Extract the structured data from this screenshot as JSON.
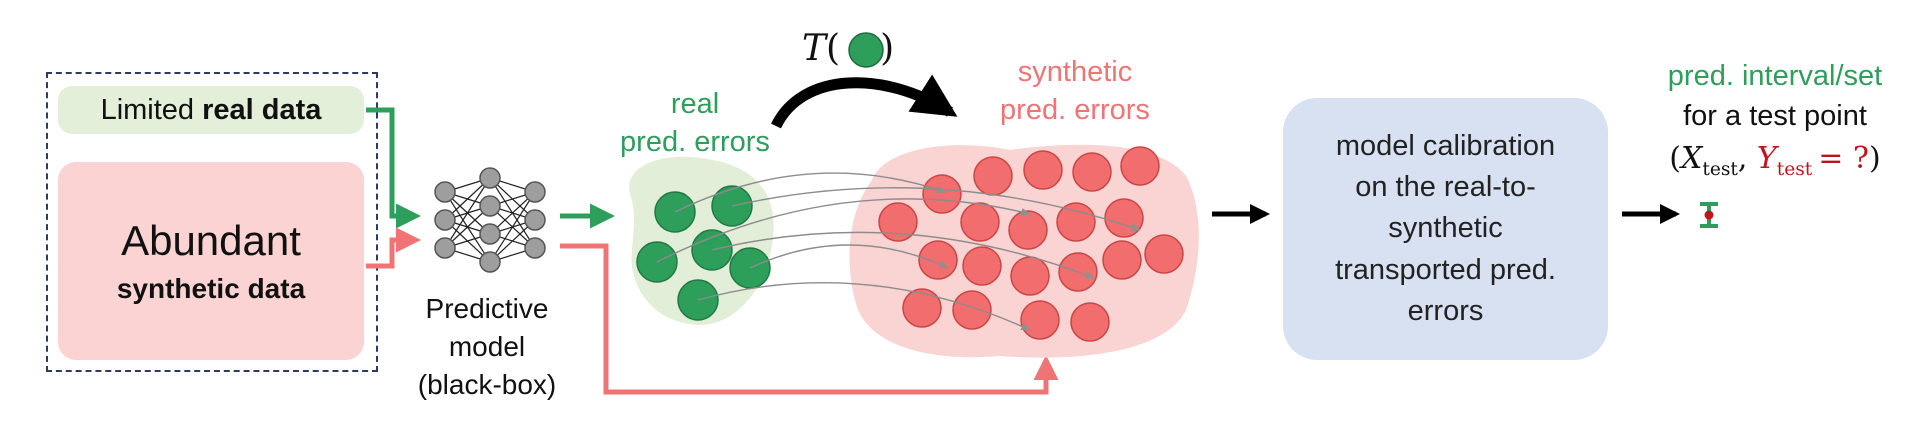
{
  "inputs": {
    "real_prefix": "Limited ",
    "real_bold": "real data",
    "synthetic_title": "Abundant",
    "synthetic_sub": "synthetic data"
  },
  "model": {
    "line1": "Predictive",
    "line2": "model",
    "line3": "(black-box)"
  },
  "errors": {
    "real_line1": "real",
    "real_line2": "pred. errors",
    "synthetic_line1": "synthetic",
    "synthetic_line2": "pred. errors",
    "transport_label": "T",
    "real_count": 6,
    "synthetic_count": 20
  },
  "calibration": {
    "line1": "model calibration",
    "line2": "on the real-to-",
    "line3": "synthetic",
    "line4": "transported pred.",
    "line5": "errors"
  },
  "output": {
    "line1": "pred. interval/set",
    "line2": "for a test point",
    "x_var": "X",
    "x_sub": "test",
    "y_var": "Y",
    "y_sub": "test",
    "y_value": "= ?"
  },
  "colors": {
    "real_green": "#2e9e5b",
    "synthetic_red": "#f07474",
    "dark_red": "#c0141b",
    "calibration_blue": "#d8e1f1",
    "dashed_border": "#2b3a67"
  }
}
